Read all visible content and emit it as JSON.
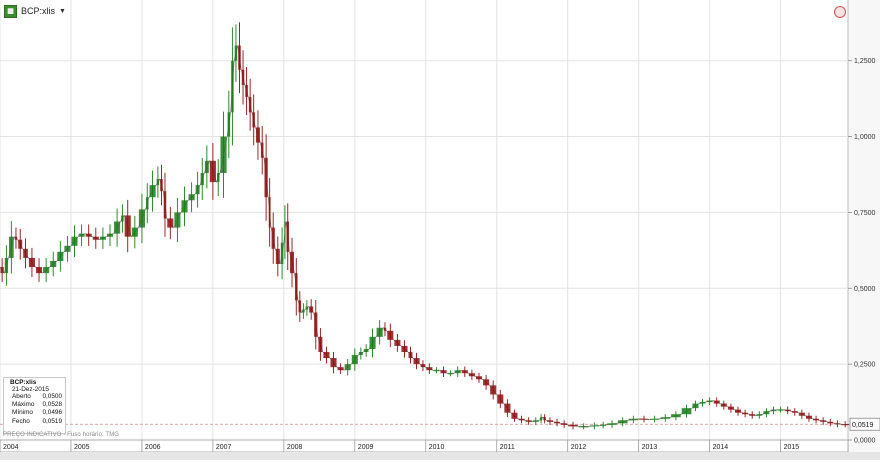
{
  "header": {
    "symbol_label": "BCP:xlis",
    "app_icon": "chart-app-icon",
    "dropdown_icon": "caret-down-icon",
    "right_icon": "refresh-circle-icon"
  },
  "info_box": {
    "symbol": "BCP:xlis",
    "date": "21-Dez-2015",
    "rows": [
      {
        "label": "Aberto",
        "value": "0,0500"
      },
      {
        "label": "Máximo",
        "value": "0,0528"
      },
      {
        "label": "Mínimo",
        "value": "0,0496"
      },
      {
        "label": "Fecho",
        "value": "0,0519"
      }
    ]
  },
  "footnote": "PREÇO INDICATIVO - Fuso horário: TMG",
  "last_value_label": "0,0519",
  "colors": {
    "up": "#1a7a1a",
    "down": "#8c1010",
    "grid": "#e3e3e3",
    "last_line": "#d08a8a"
  },
  "chart_data": {
    "type": "line",
    "style": "ohlc-candlestick",
    "title": "",
    "xlabel": "",
    "ylabel": "",
    "xlim": [
      2004.0,
      2015.95
    ],
    "ylim": [
      0,
      1.45
    ],
    "x_tick_labels": [
      "2004",
      "2005",
      "2006",
      "2007",
      "2008",
      "2009",
      "2010",
      "2011",
      "2012",
      "2013",
      "2014",
      "2015"
    ],
    "y_ticks": [
      0,
      0.25,
      0.5,
      0.75,
      1.0,
      1.25
    ],
    "y_tick_labels": [
      "0,0000",
      "0,2500",
      "0,5000",
      "0,7500",
      "1,0000",
      "1,2500"
    ],
    "grid": true,
    "last_close": 0.0519,
    "series": [
      {
        "values": [
          [
            2004.0,
            0.57
          ],
          [
            2004.06,
            0.55
          ],
          [
            2004.12,
            0.6
          ],
          [
            2004.2,
            0.67
          ],
          [
            2004.25,
            0.66
          ],
          [
            2004.32,
            0.63
          ],
          [
            2004.4,
            0.6
          ],
          [
            2004.5,
            0.57
          ],
          [
            2004.6,
            0.55
          ],
          [
            2004.7,
            0.57
          ],
          [
            2004.8,
            0.59
          ],
          [
            2004.9,
            0.62
          ],
          [
            2005.0,
            0.64
          ],
          [
            2005.1,
            0.67
          ],
          [
            2005.2,
            0.68
          ],
          [
            2005.3,
            0.67
          ],
          [
            2005.4,
            0.66
          ],
          [
            2005.5,
            0.67
          ],
          [
            2005.6,
            0.68
          ],
          [
            2005.7,
            0.72
          ],
          [
            2005.75,
            0.74
          ],
          [
            2005.85,
            0.67
          ],
          [
            2005.95,
            0.7
          ],
          [
            2006.05,
            0.76
          ],
          [
            2006.1,
            0.8
          ],
          [
            2006.2,
            0.84
          ],
          [
            2006.25,
            0.86
          ],
          [
            2006.3,
            0.82
          ],
          [
            2006.35,
            0.73
          ],
          [
            2006.45,
            0.7
          ],
          [
            2006.55,
            0.75
          ],
          [
            2006.65,
            0.79
          ],
          [
            2006.75,
            0.81
          ],
          [
            2006.82,
            0.84
          ],
          [
            2006.88,
            0.88
          ],
          [
            2006.95,
            0.92
          ],
          [
            2007.05,
            0.85
          ],
          [
            2007.1,
            0.88
          ],
          [
            2007.2,
            1.0
          ],
          [
            2007.25,
            1.08
          ],
          [
            2007.3,
            1.25
          ],
          [
            2007.35,
            1.3
          ],
          [
            2007.4,
            1.22
          ],
          [
            2007.45,
            1.17
          ],
          [
            2007.5,
            1.13
          ],
          [
            2007.55,
            1.08
          ],
          [
            2007.6,
            1.03
          ],
          [
            2007.67,
            0.98
          ],
          [
            2007.72,
            0.93
          ],
          [
            2007.78,
            0.8
          ],
          [
            2007.82,
            0.7
          ],
          [
            2007.88,
            0.63
          ],
          [
            2007.95,
            0.58
          ],
          [
            2008.0,
            0.65
          ],
          [
            2008.03,
            0.72
          ],
          [
            2008.08,
            0.62
          ],
          [
            2008.15,
            0.55
          ],
          [
            2008.2,
            0.46
          ],
          [
            2008.25,
            0.42
          ],
          [
            2008.3,
            0.43
          ],
          [
            2008.35,
            0.44
          ],
          [
            2008.42,
            0.42
          ],
          [
            2008.48,
            0.34
          ],
          [
            2008.55,
            0.29
          ],
          [
            2008.65,
            0.27
          ],
          [
            2008.75,
            0.24
          ],
          [
            2008.85,
            0.23
          ],
          [
            2008.95,
            0.25
          ],
          [
            2009.05,
            0.28
          ],
          [
            2009.12,
            0.29
          ],
          [
            2009.2,
            0.3
          ],
          [
            2009.3,
            0.34
          ],
          [
            2009.4,
            0.37
          ],
          [
            2009.45,
            0.36
          ],
          [
            2009.55,
            0.33
          ],
          [
            2009.65,
            0.31
          ],
          [
            2009.75,
            0.29
          ],
          [
            2009.82,
            0.27
          ],
          [
            2009.92,
            0.25
          ],
          [
            2010.0,
            0.24
          ],
          [
            2010.1,
            0.23
          ],
          [
            2010.2,
            0.23
          ],
          [
            2010.3,
            0.22
          ],
          [
            2010.4,
            0.22
          ],
          [
            2010.5,
            0.23
          ],
          [
            2010.6,
            0.22
          ],
          [
            2010.7,
            0.21
          ],
          [
            2010.8,
            0.2
          ],
          [
            2010.9,
            0.18
          ],
          [
            2011.0,
            0.15
          ],
          [
            2011.1,
            0.12
          ],
          [
            2011.2,
            0.09
          ],
          [
            2011.3,
            0.07
          ],
          [
            2011.4,
            0.065
          ],
          [
            2011.5,
            0.06
          ],
          [
            2011.6,
            0.065
          ],
          [
            2011.65,
            0.075
          ],
          [
            2011.7,
            0.065
          ],
          [
            2011.8,
            0.06
          ],
          [
            2011.9,
            0.055
          ],
          [
            2012.0,
            0.05
          ],
          [
            2012.15,
            0.045
          ],
          [
            2012.3,
            0.045
          ],
          [
            2012.45,
            0.048
          ],
          [
            2012.55,
            0.05
          ],
          [
            2012.7,
            0.055
          ],
          [
            2012.85,
            0.065
          ],
          [
            2013.0,
            0.07
          ],
          [
            2013.15,
            0.068
          ],
          [
            2013.3,
            0.07
          ],
          [
            2013.45,
            0.075
          ],
          [
            2013.6,
            0.085
          ],
          [
            2013.75,
            0.105
          ],
          [
            2013.85,
            0.12
          ],
          [
            2013.95,
            0.125
          ],
          [
            2014.05,
            0.13
          ],
          [
            2014.15,
            0.12
          ],
          [
            2014.25,
            0.11
          ],
          [
            2014.35,
            0.1
          ],
          [
            2014.45,
            0.09
          ],
          [
            2014.55,
            0.085
          ],
          [
            2014.65,
            0.08
          ],
          [
            2014.75,
            0.085
          ],
          [
            2014.85,
            0.095
          ],
          [
            2014.95,
            0.1
          ],
          [
            2015.05,
            0.1
          ],
          [
            2015.15,
            0.095
          ],
          [
            2015.25,
            0.09
          ],
          [
            2015.35,
            0.08
          ],
          [
            2015.45,
            0.07
          ],
          [
            2015.55,
            0.065
          ],
          [
            2015.65,
            0.06
          ],
          [
            2015.75,
            0.055
          ],
          [
            2015.85,
            0.052
          ],
          [
            2015.97,
            0.0519
          ]
        ]
      }
    ]
  }
}
